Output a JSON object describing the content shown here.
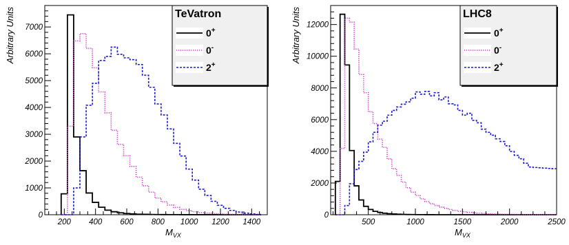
{
  "chart_data": [
    {
      "type": "histogram",
      "legend_title": "TeVatron",
      "xlabel": "M",
      "xlabel_sub": "VX",
      "ylabel": "Arbitrary Units",
      "xlim": [
        75,
        1500
      ],
      "ylim": [
        0,
        7800
      ],
      "bin_width": 40,
      "x_ticks": [
        200,
        400,
        600,
        800,
        1000,
        1200,
        1400
      ],
      "y_ticks": [
        0,
        1000,
        2000,
        3000,
        4000,
        5000,
        6000,
        7000
      ],
      "legend_position": "top-right",
      "series": [
        {
          "label_main": "0",
          "label_sup": "+",
          "color": "#000000",
          "dash": "solid",
          "start": 180,
          "values": [
            780,
            7450,
            2900,
            1640,
            810,
            460,
            280,
            170,
            110,
            70,
            45,
            30,
            20,
            14,
            10,
            7,
            5,
            4,
            3,
            2,
            2,
            1,
            1,
            1,
            1,
            0,
            0,
            0,
            0,
            0,
            0,
            0
          ]
        },
        {
          "label_main": "0",
          "label_sup": "-",
          "color": "#cc33cc",
          "dash": "dotted",
          "start": 180,
          "values": [
            0,
            3300,
            6480,
            6750,
            6200,
            5480,
            4580,
            3800,
            3150,
            2620,
            2200,
            1800,
            1400,
            1080,
            840,
            620,
            480,
            360,
            270,
            200,
            150,
            110,
            80,
            60,
            40,
            30,
            20,
            15,
            10,
            6,
            4,
            2
          ]
        },
        {
          "label_main": "2",
          "label_sup": "+",
          "color": "#1a1acc",
          "dash": "dashed",
          "start": 180,
          "values": [
            0,
            0,
            1000,
            2900,
            4080,
            4900,
            5750,
            5900,
            6250,
            5980,
            5850,
            5780,
            5600,
            5200,
            4750,
            4130,
            3720,
            3200,
            2660,
            2190,
            1700,
            1290,
            950,
            720,
            500,
            350,
            240,
            160,
            100,
            60,
            30,
            10
          ]
        }
      ]
    },
    {
      "type": "histogram",
      "legend_title": "LHC8",
      "xlabel": "M",
      "xlabel_sub": "VX",
      "ylabel": "Arbitrary Units",
      "xlim": [
        100,
        2500
      ],
      "ylim": [
        0,
        13200
      ],
      "bin_width": 50,
      "x_ticks": [
        500,
        1000,
        1500,
        2000,
        2500
      ],
      "y_ticks": [
        0,
        2000,
        4000,
        6000,
        8000,
        10000,
        12000
      ],
      "legend_position": "top-right",
      "series": [
        {
          "label_main": "0",
          "label_sup": "+",
          "color": "#000000",
          "dash": "solid",
          "start": 150,
          "values": [
            2100,
            12650,
            9450,
            4050,
            1820,
            930,
            530,
            330,
            210,
            140,
            95,
            65,
            45,
            30,
            20,
            14,
            10,
            7,
            5,
            3,
            2,
            1,
            1,
            0,
            0,
            0,
            0,
            0,
            0,
            0,
            0,
            0,
            0,
            0,
            0,
            0,
            0,
            0,
            0,
            0,
            0,
            0,
            0,
            0,
            0,
            0,
            0
          ]
        },
        {
          "label_main": "0",
          "label_sup": "-",
          "color": "#cc33cc",
          "dash": "dotted",
          "start": 150,
          "values": [
            0,
            4180,
            12400,
            12150,
            10450,
            8850,
            7700,
            6500,
            5750,
            4770,
            4250,
            3520,
            2900,
            2480,
            2060,
            1700,
            1420,
            1210,
            1000,
            830,
            690,
            580,
            480,
            400,
            330,
            270,
            220,
            180,
            150,
            120,
            95,
            75,
            60,
            48,
            38,
            30,
            24,
            19,
            15,
            12,
            9,
            7,
            5,
            4,
            3,
            2,
            1
          ]
        },
        {
          "label_main": "2",
          "label_sup": "+",
          "color": "#1a1acc",
          "dash": "dashed",
          "start": 150,
          "values": [
            0,
            0,
            580,
            1950,
            2850,
            3370,
            3950,
            4600,
            5200,
            5650,
            5900,
            6280,
            6580,
            6800,
            6970,
            7120,
            7350,
            7750,
            7600,
            7780,
            7500,
            7700,
            7250,
            7430,
            7000,
            6930,
            6580,
            6280,
            6400,
            5950,
            5800,
            5400,
            5200,
            5020,
            4790,
            4620,
            4350,
            3990,
            3750,
            3530,
            3250,
            3010,
            2980,
            2960,
            2940,
            2920,
            2900
          ]
        }
      ]
    }
  ]
}
